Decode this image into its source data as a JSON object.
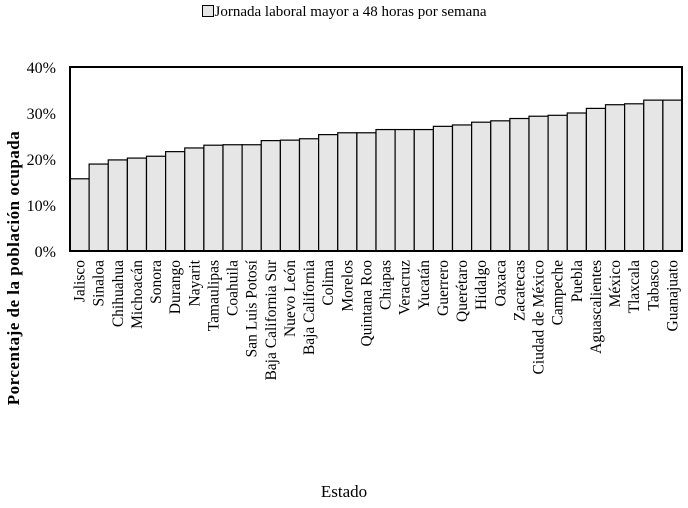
{
  "chart_data": {
    "type": "bar",
    "legend": [
      "Jornada laboral mayor a 48 horas por semana"
    ],
    "legend_position": "top-center",
    "xlabel": "Estado",
    "ylabel": "Porcentaje de la población ocupada",
    "ylim": [
      0,
      40
    ],
    "yticks": [
      "0%",
      "10%",
      "20%",
      "30%",
      "40%"
    ],
    "ytick_values": [
      0,
      10,
      20,
      30,
      40
    ],
    "categories": [
      "Jalisco",
      "Sinaloa",
      "Chihuahua",
      "Michoacán",
      "Sonora",
      "Durango",
      "Nayarit",
      "Tamaulipas",
      "Coahuila",
      "San Luis Potosí",
      "Baja California Sur",
      "Nuevo León",
      "Baja California",
      "Colima",
      "Morelos",
      "Quintana Roo",
      "Chiapas",
      "Veracruz",
      "Yucatán",
      "Guerrero",
      "Querétaro",
      "Hidalgo",
      "Oaxaca",
      "Zacatecas",
      "Ciudad de México",
      "Campeche",
      "Puebla",
      "Aguascalientes",
      "México",
      "Tlaxcala",
      "Tabasco",
      "Guanajuato"
    ],
    "series": [
      {
        "name": "Jornada laboral mayor a 48 horas por semana",
        "values": [
          15.7,
          18.9,
          19.8,
          20.2,
          20.6,
          21.6,
          22.4,
          23.0,
          23.1,
          23.1,
          24.0,
          24.1,
          24.4,
          25.3,
          25.7,
          25.7,
          26.4,
          26.4,
          26.4,
          27.1,
          27.4,
          28.0,
          28.3,
          28.8,
          29.3,
          29.5,
          30.0,
          31.0,
          31.8,
          32.0,
          32.8,
          32.8
        ]
      }
    ],
    "colors": {
      "bar_fill": "#e6e6e6",
      "bar_stroke": "#000000"
    }
  }
}
